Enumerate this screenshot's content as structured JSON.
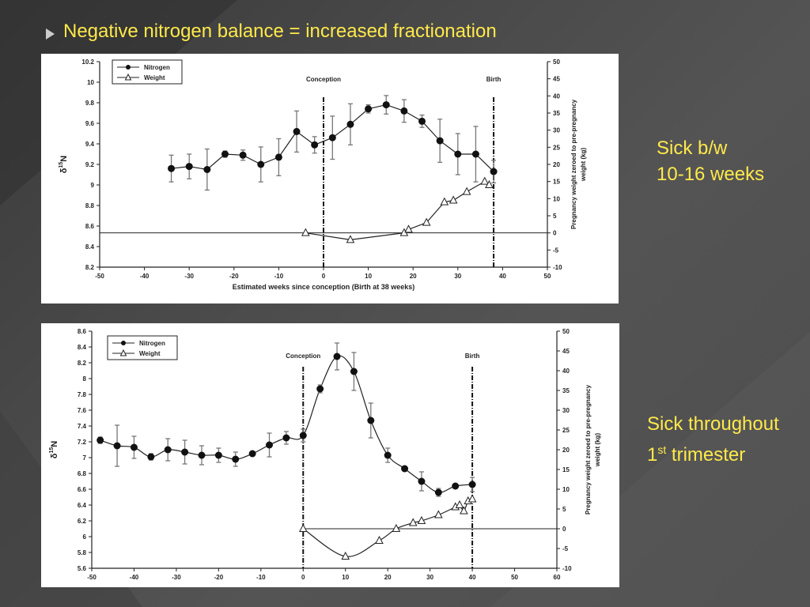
{
  "slide": {
    "title": "Negative nitrogen balance = increased fractionation",
    "note_top": [
      "Sick b/w",
      "10-16 weeks"
    ],
    "note_bottom": {
      "line1": "Sick throughout",
      "line2_num": "1",
      "line2_sup": "st",
      "line2_rest": " trimester"
    }
  },
  "colors": {
    "title": "#ffe94a",
    "background": "#4a4a4a",
    "plot_line": "#222222",
    "error_bar": "#777777"
  },
  "chart_data": [
    {
      "type": "line",
      "xlabel": "Estimated weeks since conception (Birth at 38 weeks)",
      "ylabel": "δ15N",
      "y2label": [
        "Pregnancy weight zeroed to pre-pregnancy",
        "weight (kg)"
      ],
      "xlim": [
        -50,
        50
      ],
      "xticks": [
        -50,
        -40,
        -30,
        -20,
        -10,
        0,
        10,
        20,
        30,
        40,
        50
      ],
      "ylim": [
        8.2,
        10.2
      ],
      "yticks": [
        8.2,
        8.4,
        8.6,
        8.8,
        9,
        9.2,
        9.4,
        9.6,
        9.8,
        10,
        10.2
      ],
      "y2lim": [
        -10,
        50
      ],
      "y2ticks": [
        -10,
        -5,
        0,
        5,
        10,
        15,
        20,
        25,
        30,
        35,
        40,
        45,
        50
      ],
      "grid": false,
      "legend": "top-left",
      "annotations": [
        {
          "label": "Conception",
          "x": 0
        },
        {
          "label": "Birth",
          "x": 38
        }
      ],
      "series": [
        {
          "name": "Nitrogen",
          "marker": "circle",
          "axis": "left",
          "points": [
            {
              "x": -34,
              "y": 9.16,
              "err": 0.13
            },
            {
              "x": -30,
              "y": 9.18,
              "err": 0.12
            },
            {
              "x": -26,
              "y": 9.15,
              "err": 0.2
            },
            {
              "x": -22,
              "y": 9.3,
              "err": 0.03
            },
            {
              "x": -18,
              "y": 9.29,
              "err": 0.05
            },
            {
              "x": -14,
              "y": 9.2,
              "err": 0.17
            },
            {
              "x": -10,
              "y": 9.27,
              "err": 0.18
            },
            {
              "x": -6,
              "y": 9.52,
              "err": 0.2
            },
            {
              "x": -2,
              "y": 9.39,
              "err": 0.08
            },
            {
              "x": 2,
              "y": 9.46,
              "err": 0.21
            },
            {
              "x": 6,
              "y": 9.59,
              "err": 0.2
            },
            {
              "x": 10,
              "y": 9.74,
              "err": 0.04
            },
            {
              "x": 14,
              "y": 9.78,
              "err": 0.09
            },
            {
              "x": 18,
              "y": 9.72,
              "err": 0.11
            },
            {
              "x": 22,
              "y": 9.62,
              "err": 0.06
            },
            {
              "x": 26,
              "y": 9.43,
              "err": 0.21
            },
            {
              "x": 30,
              "y": 9.3,
              "err": 0.2
            },
            {
              "x": 34,
              "y": 9.3,
              "err": 0.27
            },
            {
              "x": 38,
              "y": 9.13,
              "err": 0.11
            }
          ]
        },
        {
          "name": "Weight",
          "marker": "triangle",
          "axis": "right",
          "points": [
            {
              "x": -4,
              "y": 0
            },
            {
              "x": 6,
              "y": -2
            },
            {
              "x": 18,
              "y": 0
            },
            {
              "x": 19,
              "y": 1
            },
            {
              "x": 23,
              "y": 3
            },
            {
              "x": 27,
              "y": 9
            },
            {
              "x": 29,
              "y": 9.5
            },
            {
              "x": 32,
              "y": 12
            },
            {
              "x": 36,
              "y": 15
            },
            {
              "x": 37,
              "y": 14
            }
          ]
        }
      ]
    },
    {
      "type": "line",
      "xlabel": "",
      "ylabel": "δ15N",
      "y2label": [
        "Pregnancy weight zeroed to pre-pregnancy",
        "weight (kg)"
      ],
      "xlim": [
        -50,
        60
      ],
      "xticks": [
        -50,
        -40,
        -30,
        -20,
        -10,
        0,
        10,
        20,
        30,
        40,
        50,
        60
      ],
      "ylim": [
        5.6,
        8.6
      ],
      "yticks": [
        5.6,
        5.8,
        6,
        6.2,
        6.4,
        6.6,
        6.8,
        7,
        7.2,
        7.4,
        7.6,
        7.8,
        8,
        8.2,
        8.4,
        8.6
      ],
      "y2lim": [
        -10,
        50
      ],
      "y2ticks": [
        -10,
        -5,
        0,
        5,
        10,
        15,
        20,
        25,
        30,
        35,
        40,
        45,
        50
      ],
      "grid": false,
      "legend": "top-left",
      "annotations": [
        {
          "label": "Conception",
          "x": 0
        },
        {
          "label": "Birth",
          "x": 40
        }
      ],
      "series": [
        {
          "name": "Nitrogen",
          "marker": "circle",
          "axis": "left",
          "points": [
            {
              "x": -48,
              "y": 7.22,
              "err": 0.04
            },
            {
              "x": -44,
              "y": 7.15,
              "err": 0.26
            },
            {
              "x": -40,
              "y": 7.13,
              "err": 0.14
            },
            {
              "x": -36,
              "y": 7.01,
              "err": 0.04
            },
            {
              "x": -32,
              "y": 7.1,
              "err": 0.14
            },
            {
              "x": -28,
              "y": 7.07,
              "err": 0.15
            },
            {
              "x": -24,
              "y": 7.03,
              "err": 0.12
            },
            {
              "x": -20,
              "y": 7.03,
              "err": 0.09
            },
            {
              "x": -16,
              "y": 6.98,
              "err": 0.09
            },
            {
              "x": -12,
              "y": 7.05,
              "err": 0.02
            },
            {
              "x": -8,
              "y": 7.16,
              "err": 0.15
            },
            {
              "x": -4,
              "y": 7.25,
              "err": 0.08
            },
            {
              "x": 0,
              "y": 7.28,
              "err": 0.08
            },
            {
              "x": 4,
              "y": 7.87,
              "err": 0.05
            },
            {
              "x": 8,
              "y": 8.28,
              "err": 0.17
            },
            {
              "x": 12,
              "y": 8.09,
              "err": 0.24
            },
            {
              "x": 16,
              "y": 7.47,
              "err": 0.22
            },
            {
              "x": 20,
              "y": 7.03,
              "err": 0.09
            },
            {
              "x": 24,
              "y": 6.86,
              "err": 0.03
            },
            {
              "x": 28,
              "y": 6.7,
              "err": 0.12
            },
            {
              "x": 32,
              "y": 6.56,
              "err": 0.05
            },
            {
              "x": 36,
              "y": 6.64,
              "err": 0.02
            },
            {
              "x": 40,
              "y": 6.66,
              "err": 0.09
            }
          ]
        },
        {
          "name": "Weight",
          "marker": "triangle",
          "axis": "right",
          "points": [
            {
              "x": 0,
              "y": 0
            },
            {
              "x": 10,
              "y": -7
            },
            {
              "x": 18,
              "y": -3
            },
            {
              "x": 22,
              "y": 0
            },
            {
              "x": 26,
              "y": 1.5
            },
            {
              "x": 28,
              "y": 2
            },
            {
              "x": 32,
              "y": 3.5
            },
            {
              "x": 36,
              "y": 5.5
            },
            {
              "x": 37,
              "y": 6
            },
            {
              "x": 38,
              "y": 4.5
            },
            {
              "x": 39,
              "y": 7
            },
            {
              "x": 40,
              "y": 7.5
            }
          ]
        }
      ]
    }
  ]
}
